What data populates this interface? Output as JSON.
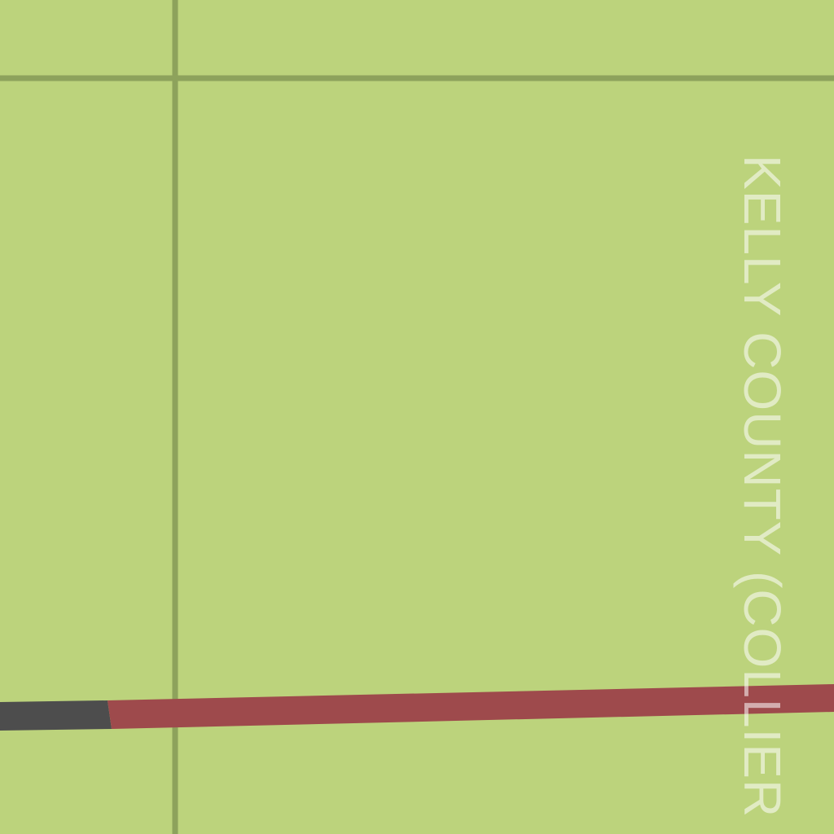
{
  "map": {
    "background_color": "#bcd37c",
    "boundary_line_color": "#8da25c",
    "road_segment_colors": [
      "#4d4d4d",
      "#9e4a4c"
    ],
    "area_label": "KELLY COUNTY (COLLIER"
  }
}
